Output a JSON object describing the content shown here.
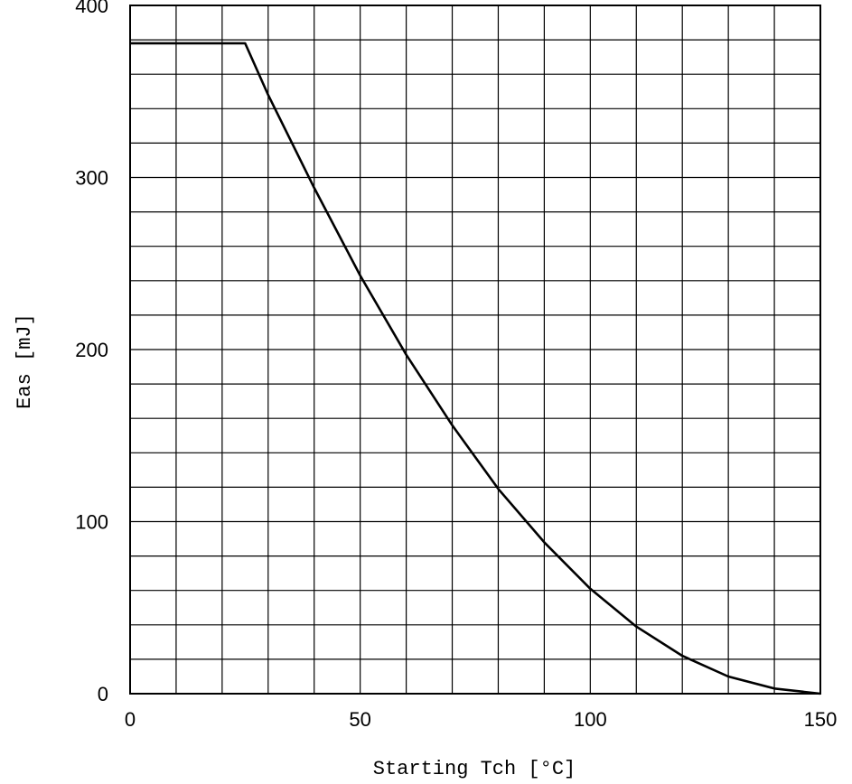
{
  "chart_data": {
    "type": "line",
    "title": "",
    "xlabel": "Starting Tch [°C]",
    "ylabel": "Eas [mJ]",
    "xlim": [
      0,
      150
    ],
    "ylim": [
      0,
      400
    ],
    "x_ticks": [
      "0",
      "50",
      "100",
      "150"
    ],
    "y_ticks": [
      "0",
      "100",
      "200",
      "300",
      "400"
    ],
    "grid": true,
    "series": [
      {
        "x": [
          0,
          25,
          30,
          40,
          50,
          60,
          70,
          80,
          90,
          100,
          110,
          120,
          130,
          140,
          150
        ],
        "y": [
          378,
          378,
          348,
          294,
          243,
          197,
          156,
          119,
          88,
          61,
          39,
          22,
          10,
          3,
          0
        ]
      }
    ]
  },
  "colors": {
    "line": "#000000",
    "grid": "#000000",
    "background": "#ffffff"
  }
}
